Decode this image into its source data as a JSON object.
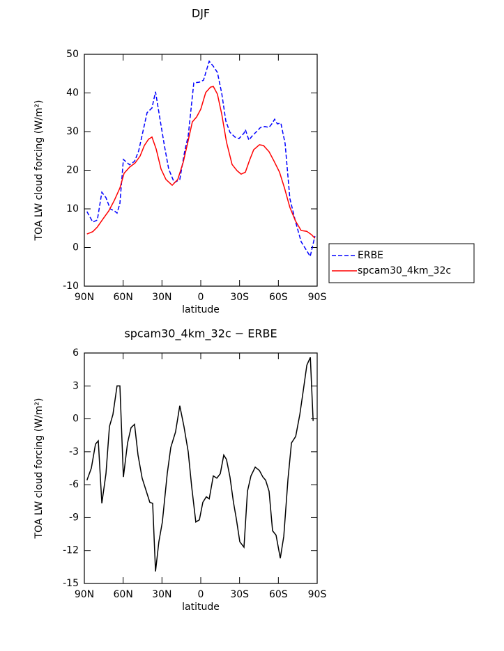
{
  "chart_data": [
    {
      "type": "line",
      "title": "DJF",
      "xlabel": "latitude",
      "ylabel": "TOA LW cloud forcing (W/m²)",
      "xlim": [
        90,
        -90
      ],
      "xticks": [
        {
          "value": 90,
          "label": "90N"
        },
        {
          "value": 60,
          "label": "60N"
        },
        {
          "value": 30,
          "label": "30N"
        },
        0,
        {
          "value": -30,
          "label": "30S"
        },
        {
          "value": -60,
          "label": "60S"
        },
        {
          "value": -90,
          "label": "90S"
        }
      ],
      "ylim": [
        -10,
        50
      ],
      "yticks": [
        -10,
        0,
        10,
        20,
        30,
        40,
        50
      ],
      "legend": "right",
      "series": [
        {
          "name": "ERBE",
          "color": "#0000ff",
          "linestyle": "dashed",
          "x": [
            88,
            83.5,
            80,
            76.5,
            73.3,
            70,
            66.8,
            64.7,
            62.5,
            59.8,
            55,
            51.2,
            48,
            41.5,
            37.7,
            35,
            31.8,
            28,
            24.8,
            20.5,
            16.2,
            12.4,
            9.7,
            5.4,
            1.1,
            -2.1,
            -6.5,
            -9.7,
            -12.9,
            -16.2,
            -19.4,
            -22.6,
            -26.4,
            -29.6,
            -33.4,
            -34.5,
            -37.2,
            -39.8,
            -43.1,
            -46.3,
            -49.6,
            -52.8,
            -54.9,
            -57.1,
            -59.2,
            -61.9,
            -65.2,
            -68.9,
            -73.2,
            -77.6,
            -81.3,
            -84.6,
            -88.3
          ],
          "values": [
            9.3,
            6.6,
            7.1,
            14.3,
            12.9,
            10,
            9.5,
            8.9,
            11.4,
            22.8,
            21.4,
            22.3,
            25,
            34.9,
            36.1,
            40.3,
            33.8,
            26.2,
            20.3,
            16.8,
            17.6,
            25,
            28.9,
            42.6,
            42.8,
            43.3,
            48.2,
            46.9,
            45.3,
            39.9,
            32.7,
            29.8,
            28.6,
            28.2,
            29.6,
            30.5,
            27.8,
            28.9,
            30,
            31.1,
            31.3,
            31.1,
            32,
            33.2,
            32,
            32.2,
            26.9,
            12.7,
            6.8,
            1.5,
            -0.5,
            -2.3,
            3
          ]
        },
        {
          "name": "spcam30_4km_32c",
          "color": "#ff0000",
          "linestyle": "solid",
          "x": [
            88,
            83.5,
            80,
            75.4,
            71.1,
            66.8,
            62.5,
            59.3,
            55,
            50.7,
            46.9,
            43.6,
            40.4,
            37.7,
            34.5,
            30.7,
            26.9,
            22.1,
            17.8,
            13.5,
            9.7,
            6.5,
            3.2,
            0,
            -3.8,
            -7.5,
            -9.7,
            -12.9,
            -16.2,
            -19.9,
            -24.2,
            -28,
            -31.2,
            -34.5,
            -37.7,
            -40.9,
            -45.3,
            -48.5,
            -52.8,
            -56.6,
            -60.9,
            -64.7,
            -68.9,
            -73.2,
            -77.6,
            -81.9,
            -85.7,
            -88.3
          ],
          "values": [
            3.5,
            4.1,
            5.3,
            7.5,
            9.5,
            12.2,
            15.4,
            19.2,
            20.8,
            21.9,
            23.7,
            26.4,
            28,
            28.6,
            25.5,
            20.3,
            17.6,
            16.1,
            17.6,
            22.1,
            27.7,
            32.5,
            33.8,
            35.8,
            40.1,
            41.5,
            41.7,
            39.7,
            34.5,
            27.3,
            21.5,
            19.9,
            19,
            19.5,
            22.6,
            25.3,
            26.6,
            26.4,
            24.8,
            22.4,
            19.5,
            15.4,
            10.4,
            6.9,
            4.4,
            4.2,
            3.3,
            2.4
          ]
        }
      ]
    },
    {
      "type": "line",
      "title": "spcam30_4km_32c − ERBE",
      "xlabel": "latitude",
      "ylabel": "TOA LW cloud forcing (W/m²)",
      "xlim": [
        90,
        -90
      ],
      "xticks": [
        {
          "value": 90,
          "label": "90N"
        },
        {
          "value": 60,
          "label": "60N"
        },
        {
          "value": 30,
          "label": "30N"
        },
        0,
        {
          "value": -30,
          "label": "30S"
        },
        {
          "value": -60,
          "label": "60S"
        },
        {
          "value": -90,
          "label": "90S"
        }
      ],
      "ylim": [
        -15,
        6
      ],
      "yticks": [
        -15,
        -12,
        -9,
        -6,
        -3,
        0,
        3,
        6
      ],
      "series": [
        {
          "color": "#000000",
          "linestyle": "solid",
          "x": [
            88,
            84.6,
            81.4,
            79.2,
            76.5,
            73.3,
            70.6,
            67.9,
            64.7,
            62.5,
            59.8,
            56.6,
            53.9,
            51.2,
            48.5,
            45.3,
            42.1,
            39.4,
            37.2,
            35,
            32.4,
            29.7,
            25.9,
            23.2,
            19.5,
            16.2,
            13,
            9.7,
            7,
            3.8,
            1.1,
            -1.6,
            -4.3,
            -6.5,
            -9.7,
            -12.4,
            -15.1,
            -17.8,
            -19.9,
            -22.6,
            -25.3,
            -27.5,
            -30.2,
            -33.4,
            -36.1,
            -38.8,
            -42.1,
            -45.3,
            -48,
            -50.2,
            -52.8,
            -55.5,
            -58.2,
            -61.5,
            -64.2,
            -67.4,
            -70.1,
            -73.4,
            -76.6,
            -79.3,
            -82,
            -84.7,
            -86.9
          ],
          "values": [
            -5.6,
            -4.5,
            -2.3,
            -2,
            -7.7,
            -5,
            -0.7,
            0.4,
            3,
            3,
            -5.3,
            -2.2,
            -0.8,
            -0.5,
            -3.3,
            -5.4,
            -6.6,
            -7.6,
            -7.7,
            -13.9,
            -11.2,
            -9.4,
            -5,
            -2.6,
            -1.2,
            1.2,
            -0.7,
            -3,
            -6.2,
            -9.4,
            -9.2,
            -7.6,
            -7.1,
            -7.3,
            -5.2,
            -5.4,
            -5,
            -3.3,
            -3.7,
            -5.3,
            -7.6,
            -9.1,
            -11.2,
            -11.7,
            -6.6,
            -5.2,
            -4.4,
            -4.7,
            -5.3,
            -5.6,
            -6.6,
            -10.2,
            -10.6,
            -12.7,
            -10.7,
            -5.5,
            -2.2,
            -1.6,
            0.4,
            2.6,
            4.9,
            5.6,
            -0.2
          ]
        }
      ]
    }
  ]
}
